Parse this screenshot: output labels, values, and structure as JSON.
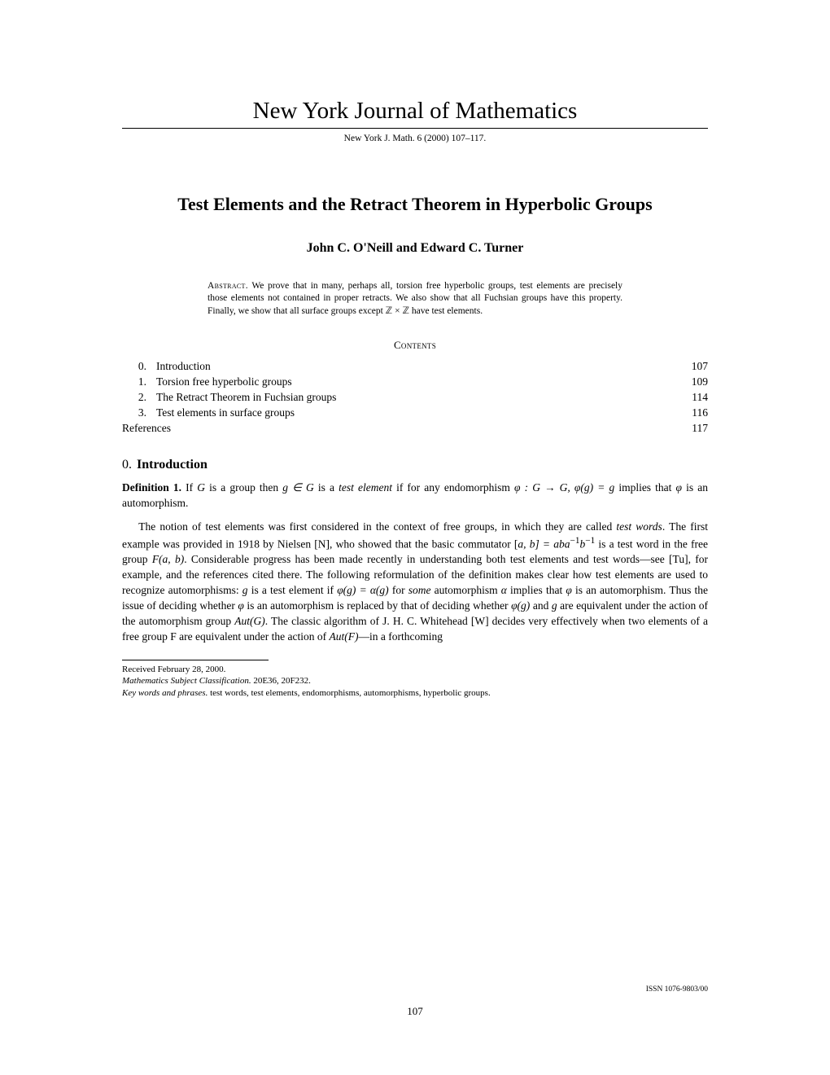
{
  "journal": {
    "name": "New York Journal of Mathematics",
    "citation": "New York J. Math. 6 (2000) 107–117."
  },
  "title": "Test Elements and the Retract Theorem in Hyperbolic Groups",
  "authors": "John C. O'Neill and Edward C. Turner",
  "abstract": {
    "label": "Abstract.",
    "text": "We prove that in many, perhaps all, torsion free hyperbolic groups, test elements are precisely those elements not contained in proper retracts. We also show that all Fuchsian groups have this property. Finally, we show that all surface groups except ℤ × ℤ have test elements."
  },
  "contents_label": "Contents",
  "toc": [
    {
      "num": "0.",
      "title": "Introduction",
      "page": "107"
    },
    {
      "num": "1.",
      "title": "Torsion free hyperbolic groups",
      "page": "109"
    },
    {
      "num": "2.",
      "title": "The Retract Theorem in Fuchsian groups",
      "page": "114"
    },
    {
      "num": "3.",
      "title": "Test elements in surface groups",
      "page": "116"
    },
    {
      "num": "",
      "title": "References",
      "page": "117"
    }
  ],
  "section": {
    "num": "0.",
    "title": "Introduction"
  },
  "definition": {
    "label": "Definition 1.",
    "text_pre": "If ",
    "text_g": "G",
    "text_mid1": " is a group then ",
    "text_gin": "g ∈ G",
    "text_mid2": " is a ",
    "text_ital": "test element",
    "text_mid3": " if for any endomorphism ",
    "text_phi": "φ : G → G, φ(g) = g",
    "text_mid4": " implies that ",
    "text_phi2": "φ",
    "text_end": " is an automorphism."
  },
  "paragraph": {
    "p1a": "The notion of test elements was first considered in the context of free groups, in which they are called ",
    "p1ital1": "test words",
    "p1b": ". The first example was provided in 1918 by Nielsen [N], who showed that the basic commutator [",
    "p1c": "a, b] = aba",
    "p1sup": "−1",
    "p1d": "b",
    "p1sup2": "−1",
    "p1e": " is a test word in the free group ",
    "p1f": "F(a, b)",
    "p1g": ". Considerable progress has been made recently in understanding both test elements and test words—see [Tu], for example, and the references cited there. The following reformulation of the definition makes clear how test elements are used to recognize automorphisms: ",
    "p1h": "g",
    "p1i": " is a test element if ",
    "p1j": "φ(g) = α(g)",
    "p1k": " for ",
    "p1ital2": "some",
    "p1l": " automorphism ",
    "p1m": "α",
    "p1n": " implies that ",
    "p1o": "φ",
    "p1p": " is an automorphism. Thus the issue of deciding whether ",
    "p1q": "φ",
    "p1r": " is an automorphism is replaced by that of deciding whether ",
    "p1s": "φ(g)",
    "p1t": " and ",
    "p1u": "g",
    "p1v": " are equivalent under the action of the automorphism group ",
    "p1w": "Aut(G)",
    "p1x": ". The classic algorithm of J. H. C. Whitehead [W] decides very effectively when two elements of a free group F are equivalent under the action of ",
    "p1y": "Aut(F)",
    "p1z": "—in a forthcoming"
  },
  "footnotes": {
    "received": "Received February 28, 2000.",
    "msc_label": "Mathematics Subject Classification.",
    "msc": " 20E36, 20F232.",
    "kw_label": "Key words and phrases.",
    "kw": " test words, test elements, endomorphisms, automorphisms, hyperbolic groups."
  },
  "issn": "ISSN 1076-9803/00",
  "page_number": "107"
}
